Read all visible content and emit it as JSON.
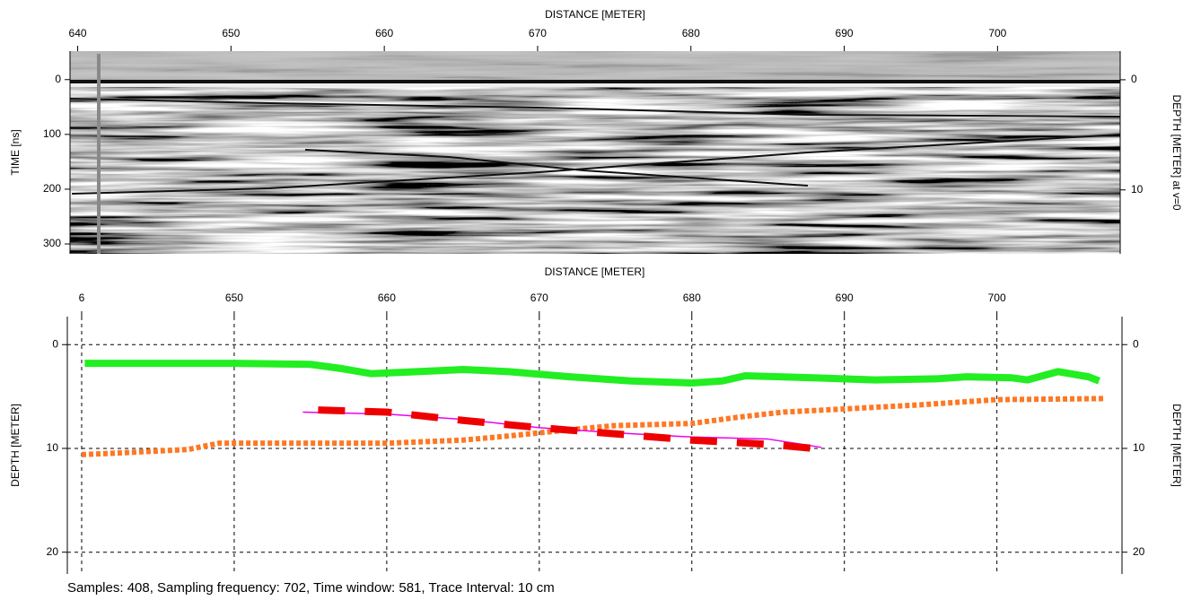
{
  "chart_data": [
    {
      "type": "radargram",
      "xlabel": "DISTANCE [METER]",
      "ylabel": "TIME [ns]",
      "y2label": "DEPTH [METER] at v=0",
      "xlim": [
        639.5,
        708
      ],
      "xticks": [
        640,
        650,
        660,
        670,
        680,
        690,
        700
      ],
      "ylim": [
        -52,
        318
      ],
      "yticks": [
        0,
        100,
        200,
        300
      ],
      "y2lim": [
        -2.6,
        15.8
      ],
      "y2ticks": [
        0,
        10
      ]
    },
    {
      "type": "line",
      "xlabel": "DISTANCE [METER]",
      "ylabel": "DEPTH [METER]",
      "y2label": "DEPTH [METER]",
      "xlim": [
        639.06,
        708.2
      ],
      "xticks": [
        {
          "value": 640,
          "label": "6"
        },
        650,
        660,
        670,
        680,
        690,
        700
      ],
      "ylim": [
        -2.7,
        22.1
      ],
      "yticks": [
        0,
        10,
        20
      ],
      "y2lim": [
        -2.7,
        22.1
      ],
      "y2ticks": [
        0,
        10,
        20
      ],
      "grid": true,
      "series": [
        {
          "color": "#22ee22",
          "width": 8,
          "dash": "none",
          "x": [
            640.2,
            645,
            650,
            655,
            657,
            659,
            662,
            665,
            668,
            672,
            676,
            680,
            682,
            683.5,
            688,
            692,
            696,
            698,
            701,
            702,
            704,
            706,
            706.7
          ],
          "values": [
            1.8,
            1.8,
            1.8,
            1.9,
            2.3,
            2.8,
            2.6,
            2.4,
            2.6,
            3.1,
            3.5,
            3.7,
            3.5,
            3.0,
            3.2,
            3.4,
            3.3,
            3.1,
            3.2,
            3.4,
            2.6,
            3.1,
            3.5
          ]
        },
        {
          "color": "#ff7722",
          "width": 6,
          "dash": "5 3",
          "x": [
            640,
            643,
            647,
            649,
            655,
            660,
            665,
            668,
            672,
            675,
            680,
            683,
            686,
            690,
            695,
            700,
            707
          ],
          "values": [
            10.6,
            10.4,
            10.1,
            9.5,
            9.5,
            9.5,
            9.2,
            8.8,
            8.2,
            7.8,
            7.6,
            7.0,
            6.5,
            6.2,
            5.8,
            5.3,
            5.2
          ]
        },
        {
          "color": "#ee00ee",
          "width": 1.5,
          "dash": "none",
          "x": [
            654.5,
            660,
            665,
            670,
            675,
            680,
            685,
            688.5
          ],
          "values": [
            6.5,
            6.7,
            7.2,
            8.0,
            8.5,
            8.9,
            9.1,
            9.9
          ]
        },
        {
          "color": "#ee0000",
          "width": 8,
          "dash": "30 22",
          "x": [
            655.5,
            660,
            665,
            670,
            675,
            680,
            685,
            688
          ],
          "values": [
            6.3,
            6.5,
            7.3,
            8.0,
            8.6,
            9.2,
            9.6,
            10.0
          ]
        }
      ]
    }
  ],
  "footer": "Samples: 408, Sampling frequency: 702, Time window: 581, Trace Interval: 10 cm"
}
